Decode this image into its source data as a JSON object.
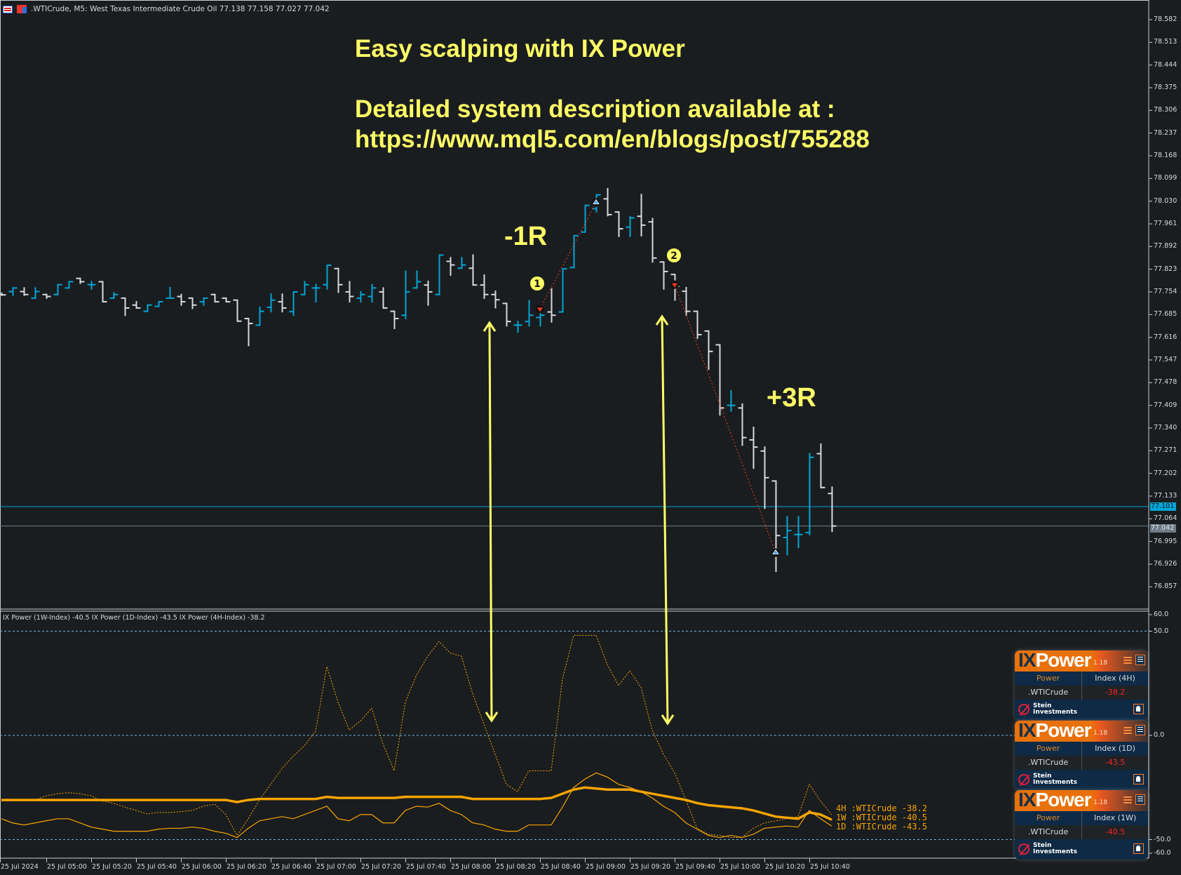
{
  "header": {
    "symbol_line": ".WTICrude, M5:  West Texas Intermediate Crude Oil  77.138 77.158 77.027 77.042",
    "icons": [
      "one-click-trading-icon",
      "chart-type-icon"
    ]
  },
  "annotations": {
    "title": "Easy scalping with IX Power",
    "line2": "Detailed system description available at :",
    "line3": "https://www.mql5.com/en/blogs/post/755288",
    "trade1_result": "-1R",
    "trade2_result": "+3R",
    "trade1_label": "1",
    "trade2_label": "2"
  },
  "colors": {
    "background": "#1a1d1f",
    "bull_bar": "#00a5d6",
    "bear_bar": "#d6dadf",
    "annotation": "#ffff66",
    "indicator": "#f7a400",
    "ask_line": "#00a5d6",
    "bid_line": "#6d7c88",
    "negative_value": "#ff2020"
  },
  "price_axis": {
    "labels": [
      "78.582",
      "78.513",
      "78.444",
      "78.375",
      "78.306",
      "78.237",
      "78.168",
      "78.099",
      "78.030",
      "77.961",
      "77.892",
      "77.823",
      "77.754",
      "77.685",
      "77.616",
      "77.547",
      "77.478",
      "77.409",
      "77.340",
      "77.271",
      "77.202",
      "77.133",
      "77.064",
      "76.995",
      "76.926",
      "76.857"
    ],
    "ask": "77.101",
    "bid": "77.042"
  },
  "indicator_axis": {
    "labels": [
      "60.0",
      "50.0",
      "0.0",
      "-50.0",
      "-60.0"
    ]
  },
  "time_axis": {
    "labels": [
      "25 Jul 2024",
      "25 Jul 05:00",
      "25 Jul 05:20",
      "25 Jul 05:40",
      "25 Jul 06:00",
      "25 Jul 06:20",
      "25 Jul 06:40",
      "25 Jul 07:00",
      "25 Jul 07:20",
      "25 Jul 07:40",
      "25 Jul 08:00",
      "25 Jul 08:20",
      "25 Jul 08:40",
      "25 Jul 09:00",
      "25 Jul 09:20",
      "25 Jul 09:40",
      "25 Jul 10:00",
      "25 Jul 10:20",
      "25 Jul 10:40"
    ]
  },
  "indicator": {
    "title": "IX Power (1W-Index) -40.5 IX Power (1D-Index) -43.5 IX Power (4H-Index) -38.2",
    "legend": [
      "4H :WTICrude -38.2",
      "1W :WTICrude -40.5",
      "1D :WTICrude -43.5"
    ]
  },
  "widgets": [
    {
      "brand_a": "IX",
      "brand_b": "Power",
      "version": "1.18",
      "col1": "Power",
      "col2": "Index (4H)",
      "symbol": ".WTICrude",
      "value": "-38.2",
      "company1": "Stein",
      "company2": "Investments"
    },
    {
      "brand_a": "IX",
      "brand_b": "Power",
      "version": "1.18",
      "col1": "Power",
      "col2": "Index (1D)",
      "symbol": ".WTICrude",
      "value": "-43.5",
      "company1": "Stein",
      "company2": "Investments"
    },
    {
      "brand_a": "IX",
      "brand_b": "Power",
      "version": "1.18",
      "col1": "Power",
      "col2": "Index (1W)",
      "symbol": ".WTICrude",
      "value": "-40.5",
      "company1": "Stein",
      "company2": "Investments"
    }
  ],
  "chart_data": [
    {
      "type": "ohlc",
      "timeframe": "M5",
      "first_bar_time": "25 Jul 04:40",
      "ylim": [
        76.857,
        78.582
      ],
      "grid": false,
      "bars_ohlc": [
        [
          77.746,
          77.75,
          77.744,
          77.745
        ],
        [
          77.755,
          77.766,
          77.744,
          77.766
        ],
        [
          77.755,
          77.766,
          77.744,
          77.746
        ],
        [
          77.735,
          77.766,
          77.735,
          77.755
        ],
        [
          77.746,
          77.746,
          77.735,
          77.74
        ],
        [
          77.746,
          77.776,
          77.746,
          77.776
        ],
        [
          77.766,
          77.785,
          77.766,
          77.785
        ],
        [
          77.795,
          77.795,
          77.78,
          77.785
        ],
        [
          77.776,
          77.785,
          77.763,
          77.776
        ],
        [
          77.785,
          77.785,
          77.724,
          77.724
        ],
        [
          77.735,
          77.751,
          77.735,
          77.746
        ],
        [
          77.735,
          77.735,
          77.683,
          77.705
        ],
        [
          77.714,
          77.724,
          77.705,
          77.705
        ],
        [
          77.695,
          77.714,
          77.695,
          77.714
        ],
        [
          77.71,
          77.724,
          77.71,
          77.724
        ],
        [
          77.735,
          77.767,
          77.735,
          77.735
        ],
        [
          77.74,
          77.746,
          77.714,
          77.724
        ],
        [
          77.735,
          77.735,
          77.704,
          77.714
        ],
        [
          77.724,
          77.735,
          77.714,
          77.735
        ],
        [
          77.746,
          77.746,
          77.724,
          77.724
        ],
        [
          77.735,
          77.735,
          77.724,
          77.724
        ],
        [
          77.729,
          77.729,
          77.665,
          77.665
        ],
        [
          77.673,
          77.673,
          77.591,
          77.658
        ],
        [
          77.653,
          77.707,
          77.653,
          77.695
        ],
        [
          77.707,
          77.747,
          77.694,
          77.729
        ],
        [
          77.724,
          77.747,
          77.694,
          77.705
        ],
        [
          77.694,
          77.754,
          77.683,
          77.754
        ],
        [
          77.746,
          77.785,
          77.746,
          77.776
        ],
        [
          77.766,
          77.776,
          77.724,
          77.766
        ],
        [
          77.776,
          77.835,
          77.763,
          77.835
        ],
        [
          77.825,
          77.825,
          77.753,
          77.776
        ],
        [
          77.754,
          77.785,
          77.724,
          77.74
        ],
        [
          77.735,
          77.754,
          77.724,
          77.746
        ],
        [
          77.74,
          77.776,
          77.724,
          77.766
        ],
        [
          77.754,
          77.766,
          77.705,
          77.705
        ],
        [
          77.695,
          77.695,
          77.643,
          77.673
        ],
        [
          77.683,
          77.817,
          77.673,
          77.754
        ],
        [
          77.766,
          77.817,
          77.766,
          77.785
        ],
        [
          77.775,
          77.786,
          77.714,
          77.754
        ],
        [
          77.746,
          77.866,
          77.746,
          77.866
        ],
        [
          77.847,
          77.858,
          77.805,
          77.836
        ],
        [
          77.826,
          77.858,
          77.826,
          77.836
        ],
        [
          77.826,
          77.866,
          77.775,
          77.775
        ],
        [
          77.775,
          77.805,
          77.735,
          77.746
        ],
        [
          77.746,
          77.756,
          77.706,
          77.73
        ],
        [
          77.719,
          77.719,
          77.651,
          77.664
        ],
        [
          77.653,
          77.664,
          77.632,
          77.653
        ],
        [
          77.664,
          77.727,
          77.651,
          77.683
        ],
        [
          77.676,
          77.706,
          77.651,
          77.683
        ],
        [
          77.693,
          77.763,
          77.663,
          77.683
        ],
        [
          77.693,
          77.824,
          77.693,
          77.824
        ],
        [
          77.828,
          77.925,
          77.828,
          77.925
        ],
        [
          77.936,
          78.017,
          77.936,
          78.017
        ],
        [
          78.007,
          78.049,
          77.998,
          78.049
        ],
        [
          78.037,
          78.068,
          77.986,
          77.989
        ],
        [
          77.997,
          77.997,
          77.923,
          77.946
        ],
        [
          77.951,
          77.982,
          77.923,
          77.979
        ],
        [
          77.984,
          78.05,
          77.925,
          77.957
        ],
        [
          77.967,
          77.977,
          77.845,
          77.857
        ],
        [
          77.845,
          77.845,
          77.763,
          77.816
        ],
        [
          77.807,
          77.807,
          77.729,
          77.771
        ],
        [
          77.756,
          77.767,
          77.683,
          77.695
        ],
        [
          77.695,
          77.695,
          77.613,
          77.624
        ],
        [
          77.635,
          77.635,
          77.519,
          77.573
        ],
        [
          77.593,
          77.593,
          77.38,
          77.401
        ],
        [
          77.409,
          77.453,
          77.392,
          77.409
        ],
        [
          77.401,
          77.413,
          77.288,
          77.311
        ],
        [
          77.304,
          77.342,
          77.218,
          77.282
        ],
        [
          77.27,
          77.282,
          77.096,
          77.189
        ],
        [
          77.179,
          77.179,
          76.904,
          77.013
        ],
        [
          77.007,
          77.07,
          76.955,
          77.028
        ],
        [
          77.016,
          77.07,
          76.977,
          77.016
        ],
        [
          77.022,
          77.262,
          77.016,
          77.251
        ],
        [
          77.262,
          77.291,
          77.159,
          77.159
        ],
        [
          77.141,
          77.16,
          77.026,
          77.042
        ]
      ],
      "trades": [
        {
          "label": "1",
          "entry_bar": 48,
          "entry_price": 77.702,
          "entry_marker": "sell",
          "exit_bar": 53,
          "exit_price": 78.026,
          "result": "-1R"
        },
        {
          "label": "2",
          "entry_bar": 60,
          "entry_price": 77.776,
          "entry_marker": "sell",
          "exit_bar": 69,
          "exit_price": 76.961,
          "result": "+3R"
        }
      ],
      "horizontal_lines": {
        "ask": 77.101,
        "bid": 77.042
      }
    },
    {
      "type": "line",
      "ylim": [
        -60,
        60
      ],
      "levels": [
        50,
        0,
        -50
      ],
      "series": [
        {
          "name": "IX Power (4H-Index)",
          "style": "dashed",
          "values": [
            -31.5,
            -31,
            -31,
            -31,
            -29,
            -28,
            -27.5,
            -28,
            -29,
            -31.5,
            -32.6,
            -34.4,
            -36,
            -37.7,
            -37,
            -37,
            -36.6,
            -36,
            -34,
            -33,
            -38,
            -48,
            -40,
            -31,
            -23.5,
            -16,
            -10,
            -5,
            2,
            33,
            16,
            2.5,
            7,
            13,
            -4,
            -17,
            16,
            29,
            38,
            45,
            39.5,
            38,
            20,
            5.4,
            -9,
            -23.5,
            -27,
            -17,
            -17,
            -17,
            27,
            48,
            48,
            48,
            34,
            24,
            31,
            23,
            2.5,
            -9,
            -18,
            -31,
            -44.6,
            -47.5,
            -48,
            -49,
            -49,
            -44.6,
            -42,
            -41,
            -40,
            -39,
            -23.5,
            -31.5,
            -38.2
          ]
        },
        {
          "name": "IX Power (1D-Index)",
          "style": "thin",
          "values": [
            -40,
            -42,
            -43,
            -42,
            -41,
            -40,
            -40,
            -42,
            -44,
            -45,
            -46,
            -46,
            -46,
            -46,
            -45,
            -44.6,
            -44.6,
            -44,
            -44.6,
            -46,
            -47,
            -49,
            -44.6,
            -41,
            -40,
            -39,
            -40,
            -38,
            -36,
            -34,
            -40,
            -41,
            -38,
            -38,
            -42,
            -42,
            -36,
            -34,
            -34.4,
            -32.6,
            -36,
            -38,
            -42,
            -43,
            -45,
            -46,
            -46,
            -43,
            -43,
            -43,
            -34.4,
            -25,
            -21,
            -18,
            -20,
            -23.5,
            -25,
            -27,
            -30,
            -34,
            -37,
            -42,
            -45,
            -48,
            -49,
            -48,
            -49,
            -47.5,
            -44.6,
            -44,
            -43.5,
            -44,
            -36,
            -40,
            -43.5
          ]
        },
        {
          "name": "IX Power (1W-Index)",
          "style": "thick",
          "values": [
            -31,
            -31,
            -31,
            -31,
            -31,
            -31,
            -31,
            -31,
            -31,
            -31,
            -31,
            -31,
            -31,
            -31,
            -31,
            -31,
            -31,
            -31,
            -31,
            -31,
            -31,
            -32,
            -31,
            -30.5,
            -30.5,
            -30.5,
            -30.5,
            -30.5,
            -30.5,
            -29.5,
            -30,
            -30,
            -30,
            -30,
            -30,
            -30,
            -29.5,
            -29.5,
            -29.5,
            -29.5,
            -29.5,
            -29.5,
            -30.5,
            -30.5,
            -30.5,
            -30.5,
            -30.5,
            -30.5,
            -30.5,
            -30,
            -28,
            -26,
            -25,
            -25.5,
            -26,
            -26,
            -26,
            -27,
            -28,
            -29,
            -30,
            -31,
            -32.5,
            -33.5,
            -34,
            -34.5,
            -35,
            -36,
            -37.5,
            -39,
            -39.5,
            -40,
            -37,
            -38,
            -40.5
          ]
        }
      ]
    }
  ]
}
